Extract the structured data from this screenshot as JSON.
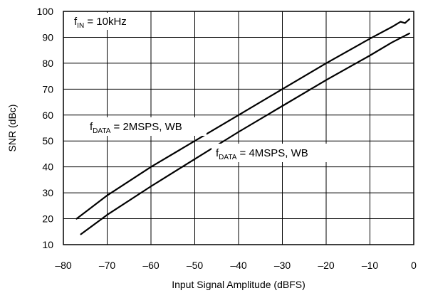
{
  "chart_data": {
    "type": "line",
    "xlabel": "Input Signal Amplitude (dBFS)",
    "ylabel": "SNR (dBc)",
    "xlim": [
      -80,
      0
    ],
    "ylim": [
      10,
      100
    ],
    "xticks": [
      "–80",
      "–70",
      "–60",
      "–50",
      "–40",
      "–30",
      "–20",
      "–10",
      "0"
    ],
    "yticks": [
      "10",
      "20",
      "30",
      "40",
      "50",
      "60",
      "70",
      "80",
      "90",
      "100"
    ],
    "grid": true,
    "series": [
      {
        "x": [
          -77,
          -70,
          -60,
          -50,
          -40,
          -30,
          -20,
          -10,
          -5,
          -3,
          -2,
          -1
        ],
        "y": [
          20,
          29,
          40,
          50,
          60,
          70,
          80,
          89.5,
          94,
          96,
          95.5,
          97
        ]
      },
      {
        "x": [
          -76,
          -70,
          -60,
          -50,
          -40,
          -30,
          -20,
          -10,
          -5,
          -1
        ],
        "y": [
          14,
          21.5,
          32.5,
          43,
          53.5,
          63.5,
          73.5,
          83,
          88,
          91.5
        ]
      }
    ],
    "annotations": {
      "fin": {
        "main": "f",
        "sub": "IN",
        "rest": " = 10kHz"
      },
      "data2": {
        "main": "f",
        "sub": "DATA",
        "rest": " = 2MSPS, WB"
      },
      "data4": {
        "main": "f",
        "sub": "DATA",
        "rest": " = 4MSPS, WB"
      }
    }
  }
}
